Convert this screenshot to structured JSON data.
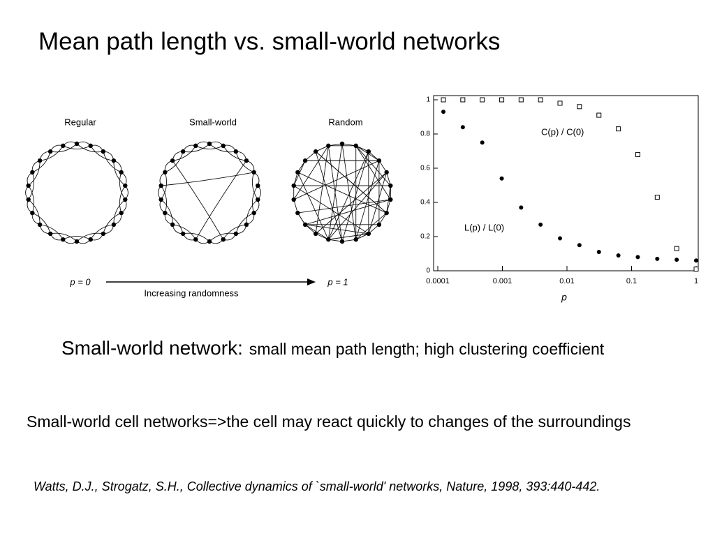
{
  "title": "Mean path length vs. small-world networks",
  "diagram": {
    "panels": [
      "Regular",
      "Small-world",
      "Random"
    ],
    "left_label": "p = 0",
    "arrow_label": "Increasing randomness",
    "right_label": "p = 1"
  },
  "chart_data": {
    "type": "scatter",
    "x_scale": "log",
    "xlabel": "p",
    "x": [
      0.000122,
      0.000244,
      0.000488,
      0.000977,
      0.00195,
      0.0039,
      0.0078,
      0.0156,
      0.03125,
      0.0625,
      0.125,
      0.25,
      0.5,
      1
    ],
    "series": [
      {
        "name": "C(p) / C(0)",
        "marker": "square",
        "color": "#000000",
        "values": [
          1,
          1,
          1,
          1,
          1,
          1,
          0.98,
          0.96,
          0.91,
          0.83,
          0.68,
          0.43,
          0.13,
          0.01
        ]
      },
      {
        "name": "L(p) / L(0)",
        "marker": "circle",
        "color": "#000000",
        "values": [
          0.93,
          0.84,
          0.75,
          0.54,
          0.37,
          0.27,
          0.19,
          0.15,
          0.11,
          0.09,
          0.08,
          0.07,
          0.065,
          0.06
        ]
      }
    ],
    "xlim": [
      0.0001,
      1
    ],
    "xticks": [
      0.0001,
      0.001,
      0.01,
      0.1,
      1
    ],
    "ylim": [
      0,
      1
    ],
    "yticks": [
      0,
      0.2,
      0.4,
      0.6,
      0.8,
      1
    ]
  },
  "statement": {
    "lead": "Small-world network:",
    "detail": "small mean path length;  high clustering coefficient"
  },
  "body": "Small-world cell networks=>the cell may react quickly to changes of the surroundings",
  "citation": "Watts, D.J., Strogatz, S.H., Collective dynamics of `small-world' networks, Nature, 1998, 393:440-442."
}
